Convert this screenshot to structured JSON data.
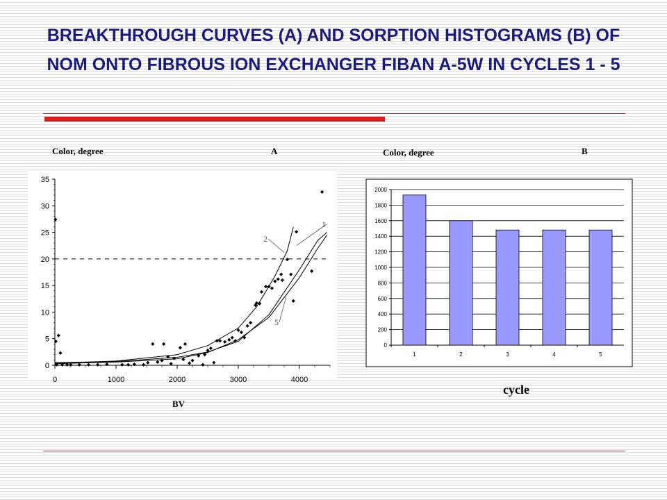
{
  "slide": {
    "title": "BREAKTHROUGH CURVES (A) AND SORPTION HISTOGRAMS (B) OF NOM ONTO FIBROUS ION EXCHANGER FIBAN A-5W IN CYCLES 1 - 5"
  },
  "chart_data": [
    {
      "type": "scatter",
      "panel_label": "A",
      "ylabel": "Color, degree",
      "xlabel": "BV",
      "xlim": [
        0,
        4500
      ],
      "ylim": [
        0,
        35
      ],
      "x_ticks": [
        0,
        1000,
        2000,
        3000,
        4000
      ],
      "y_ticks": [
        0,
        5,
        10,
        15,
        20,
        25,
        30,
        35
      ],
      "reference_line_y": 20,
      "curve_labels": [
        "1",
        "2",
        "5"
      ],
      "points": [
        [
          10,
          27.4
        ],
        [
          15,
          4.5
        ],
        [
          30,
          0.1
        ],
        [
          60,
          5.6
        ],
        [
          90,
          2.3
        ],
        [
          120,
          0.1
        ],
        [
          200,
          0.1
        ],
        [
          260,
          0.1
        ],
        [
          400,
          0.1
        ],
        [
          550,
          0.1
        ],
        [
          700,
          0.1
        ],
        [
          850,
          0.2
        ],
        [
          1100,
          0.1
        ],
        [
          1200,
          0.1
        ],
        [
          1300,
          0.2
        ],
        [
          1450,
          0.1
        ],
        [
          1520,
          0.5
        ],
        [
          1600,
          4.0
        ],
        [
          1680,
          0.6
        ],
        [
          1750,
          0.9
        ],
        [
          1780,
          4.0
        ],
        [
          1850,
          1.6
        ],
        [
          1900,
          0.3
        ],
        [
          1950,
          1.3
        ],
        [
          2050,
          3.3
        ],
        [
          2100,
          1.1
        ],
        [
          2130,
          4.0
        ],
        [
          2200,
          0.4
        ],
        [
          2250,
          0.9
        ],
        [
          2350,
          1.8
        ],
        [
          2420,
          0.1
        ],
        [
          2450,
          2.0
        ],
        [
          2500,
          2.8
        ],
        [
          2550,
          3.2
        ],
        [
          2600,
          0.5
        ],
        [
          2650,
          4.6
        ],
        [
          2700,
          4.6
        ],
        [
          2780,
          4.4
        ],
        [
          2850,
          4.8
        ],
        [
          2900,
          5.2
        ],
        [
          2950,
          4.6
        ],
        [
          3000,
          6.6
        ],
        [
          3050,
          6.2
        ],
        [
          3100,
          5.2
        ],
        [
          3150,
          7.4
        ],
        [
          3200,
          8.0
        ],
        [
          3280,
          11.3
        ],
        [
          3300,
          11.7
        ],
        [
          3350,
          11.6
        ],
        [
          3380,
          13.8
        ],
        [
          3450,
          14.8
        ],
        [
          3500,
          14.8
        ],
        [
          3550,
          14.5
        ],
        [
          3600,
          15.8
        ],
        [
          3650,
          16.2
        ],
        [
          3700,
          17.1
        ],
        [
          3720,
          16.0
        ],
        [
          3800,
          19.9
        ],
        [
          3860,
          17.1
        ],
        [
          3900,
          12.1
        ],
        [
          3950,
          25.1
        ],
        [
          4200,
          17.7
        ],
        [
          4370,
          32.6
        ]
      ],
      "curves": {
        "1": [
          [
            0,
            0.5
          ],
          [
            1000,
            0.7
          ],
          [
            2000,
            1.5
          ],
          [
            2500,
            2.5
          ],
          [
            3000,
            4.5
          ],
          [
            3500,
            9.5
          ],
          [
            4000,
            18.0
          ],
          [
            4300,
            23.5
          ],
          [
            4450,
            25.0
          ]
        ],
        "2": [
          [
            0,
            0.4
          ],
          [
            1000,
            0.8
          ],
          [
            2000,
            2.0
          ],
          [
            2500,
            3.7
          ],
          [
            3000,
            7.0
          ],
          [
            3300,
            11.0
          ],
          [
            3600,
            16.8
          ],
          [
            3800,
            21.5
          ],
          [
            3900,
            26.0
          ]
        ],
        "5": [
          [
            0,
            0.3
          ],
          [
            1000,
            0.6
          ],
          [
            2000,
            1.2
          ],
          [
            2500,
            2.4
          ],
          [
            3000,
            4.8
          ],
          [
            3500,
            9.0
          ],
          [
            4000,
            16.5
          ],
          [
            4300,
            22.0
          ],
          [
            4450,
            24.5
          ]
        ]
      }
    },
    {
      "type": "bar",
      "panel_label": "B",
      "ylabel": "Color, degree",
      "xlabel": "cycle",
      "categories": [
        "1",
        "2",
        "3",
        "4",
        "5"
      ],
      "values": [
        1930,
        1600,
        1480,
        1480,
        1480
      ],
      "ylim": [
        0,
        2000
      ],
      "y_ticks": [
        0,
        200,
        400,
        600,
        800,
        1000,
        1200,
        1400,
        1600,
        1800,
        2000
      ],
      "grid": true,
      "bar_color": "#9999ff"
    }
  ]
}
